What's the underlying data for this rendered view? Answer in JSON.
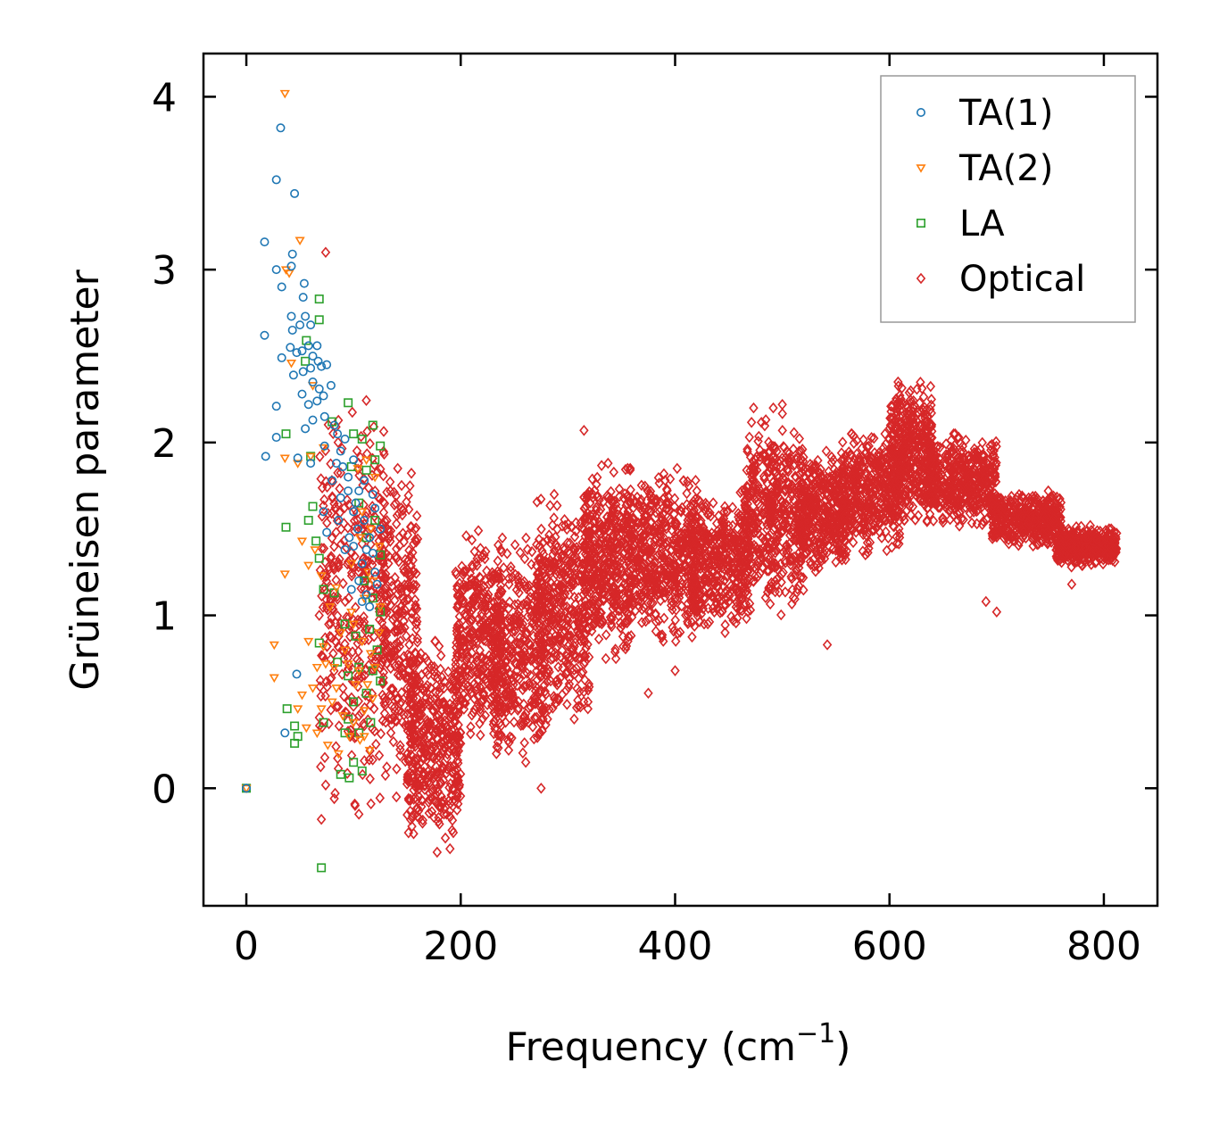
{
  "chart_data": {
    "type": "scatter",
    "title": "",
    "xlabel": "Frequency (cm",
    "xlabel_sup": "−1",
    "xlabel_close": ")",
    "ylabel": "Grüneisen parameter",
    "xlim": [
      -40,
      850
    ],
    "ylim": [
      -0.68,
      4.25
    ],
    "xticks": [
      0,
      200,
      400,
      600,
      800
    ],
    "yticks": [
      0,
      1,
      2,
      3,
      4
    ],
    "xtick_labels": [
      "0",
      "200",
      "400",
      "600",
      "800"
    ],
    "ytick_labels": [
      "0",
      "1",
      "2",
      "3",
      "4"
    ],
    "legend_position": "top-right",
    "series": [
      {
        "name": "TA(1)",
        "marker": "circle",
        "color": "#1f77b4",
        "points": [
          [
            0,
            0
          ],
          [
            32,
            3.82
          ],
          [
            28,
            3.52
          ],
          [
            45,
            3.44
          ],
          [
            17,
            3.16
          ],
          [
            43,
            3.09
          ],
          [
            42,
            3.02
          ],
          [
            28,
            3.0
          ],
          [
            33,
            2.9
          ],
          [
            54,
            2.92
          ],
          [
            53,
            2.84
          ],
          [
            17,
            2.62
          ],
          [
            42,
            2.73
          ],
          [
            50,
            2.68
          ],
          [
            55,
            2.73
          ],
          [
            43,
            2.65
          ],
          [
            60,
            2.68
          ],
          [
            33,
            2.49
          ],
          [
            41,
            2.55
          ],
          [
            47,
            2.52
          ],
          [
            52,
            2.53
          ],
          [
            58,
            2.56
          ],
          [
            62,
            2.5
          ],
          [
            66,
            2.56
          ],
          [
            44,
            2.39
          ],
          [
            53,
            2.41
          ],
          [
            60,
            2.43
          ],
          [
            67,
            2.47
          ],
          [
            70,
            2.44
          ],
          [
            75,
            2.45
          ],
          [
            62,
            2.35
          ],
          [
            68,
            2.31
          ],
          [
            79,
            2.33
          ],
          [
            52,
            2.28
          ],
          [
            58,
            2.22
          ],
          [
            66,
            2.24
          ],
          [
            72,
            2.27
          ],
          [
            28,
            2.21
          ],
          [
            62,
            2.13
          ],
          [
            73,
            2.15
          ],
          [
            55,
            2.08
          ],
          [
            82,
            2.1
          ],
          [
            28,
            2.03
          ],
          [
            48,
            1.91
          ],
          [
            73,
            1.98
          ],
          [
            84,
            1.88
          ],
          [
            18,
            1.92
          ],
          [
            60,
            1.88
          ],
          [
            80,
            1.78
          ],
          [
            90,
            1.86
          ],
          [
            95,
            1.8
          ],
          [
            72,
            1.6
          ],
          [
            88,
            1.68
          ],
          [
            105,
            1.72
          ],
          [
            100,
            1.6
          ],
          [
            110,
            1.55
          ],
          [
            115,
            1.45
          ],
          [
            120,
            1.62
          ],
          [
            75,
            1.48
          ],
          [
            100,
            1.4
          ],
          [
            108,
            1.3
          ],
          [
            118,
            1.36
          ],
          [
            125,
            1.5
          ],
          [
            105,
            1.2
          ],
          [
            112,
            1.12
          ],
          [
            120,
            1.25
          ],
          [
            98,
            1.15
          ],
          [
            115,
            1.05
          ],
          [
            47,
            0.66
          ],
          [
            36,
            0.32
          ],
          [
            88,
            1.95
          ],
          [
            92,
            2.02
          ],
          [
            100,
            1.9
          ],
          [
            85,
            2.05
          ],
          [
            95,
            1.72
          ],
          [
            102,
            1.65
          ],
          [
            110,
            1.78
          ],
          [
            118,
            1.7
          ],
          [
            104,
            1.5
          ],
          [
            96,
            1.45
          ],
          [
            112,
            1.38
          ],
          [
            122,
            1.18
          ],
          [
            108,
            1.08
          ],
          [
            92,
            1.38
          ],
          [
            86,
            1.55
          ]
        ]
      },
      {
        "name": "TA(2)",
        "marker": "triangle-down",
        "color": "#ff7f0e",
        "points": [
          [
            0,
            0
          ],
          [
            36,
            4.02
          ],
          [
            50,
            3.17
          ],
          [
            37,
            3.0
          ],
          [
            40,
            2.98
          ],
          [
            42,
            2.46
          ],
          [
            62,
            2.33
          ],
          [
            60,
            1.92
          ],
          [
            36,
            1.91
          ],
          [
            48,
            1.88
          ],
          [
            72,
            1.97
          ],
          [
            52,
            1.43
          ],
          [
            64,
            1.38
          ],
          [
            36,
            1.24
          ],
          [
            58,
            1.29
          ],
          [
            70,
            1.23
          ],
          [
            84,
            1.16
          ],
          [
            78,
            1.05
          ],
          [
            98,
            1.02
          ],
          [
            110,
            1.1
          ],
          [
            118,
            1.2
          ],
          [
            125,
            1.05
          ],
          [
            88,
            0.9
          ],
          [
            100,
            0.95
          ],
          [
            108,
            0.85
          ],
          [
            116,
            0.78
          ],
          [
            124,
            0.9
          ],
          [
            26,
            0.83
          ],
          [
            72,
            0.82
          ],
          [
            82,
            0.7
          ],
          [
            95,
            0.72
          ],
          [
            105,
            0.68
          ],
          [
            113,
            0.6
          ],
          [
            120,
            0.7
          ],
          [
            26,
            0.64
          ],
          [
            52,
            0.54
          ],
          [
            62,
            0.58
          ],
          [
            70,
            0.46
          ],
          [
            80,
            0.5
          ],
          [
            90,
            0.42
          ],
          [
            100,
            0.38
          ],
          [
            110,
            0.45
          ],
          [
            48,
            0.46
          ],
          [
            56,
            0.35
          ],
          [
            66,
            0.32
          ],
          [
            76,
            0.25
          ],
          [
            86,
            0.2
          ],
          [
            96,
            0.3
          ],
          [
            106,
            0.28
          ],
          [
            115,
            0.22
          ],
          [
            104,
            1.85
          ],
          [
            112,
            1.9
          ],
          [
            120,
            1.8
          ],
          [
            108,
            1.6
          ],
          [
            116,
            1.5
          ],
          [
            124,
            1.4
          ],
          [
            98,
            1.3
          ],
          [
            106,
            1.45
          ],
          [
            114,
            1.25
          ],
          [
            92,
            0.8
          ],
          [
            102,
            0.6
          ],
          [
            118,
            0.52
          ],
          [
            84,
            0.58
          ],
          [
            74,
            0.72
          ],
          [
            66,
            0.7
          ],
          [
            58,
            0.85
          ],
          [
            110,
            0.3
          ]
        ]
      },
      {
        "name": "LA",
        "marker": "square",
        "color": "#2ca02c",
        "points": [
          [
            0,
            0
          ],
          [
            68,
            2.83
          ],
          [
            68,
            2.71
          ],
          [
            55,
            2.47
          ],
          [
            56,
            2.59
          ],
          [
            95,
            2.23
          ],
          [
            80,
            2.12
          ],
          [
            37,
            2.05
          ],
          [
            100,
            2.05
          ],
          [
            108,
            2.02
          ],
          [
            118,
            2.1
          ],
          [
            125,
            1.98
          ],
          [
            60,
            1.92
          ],
          [
            98,
            1.86
          ],
          [
            112,
            1.84
          ],
          [
            120,
            1.9
          ],
          [
            62,
            1.63
          ],
          [
            58,
            1.55
          ],
          [
            37,
            1.51
          ],
          [
            65,
            1.43
          ],
          [
            68,
            1.33
          ],
          [
            72,
            1.15
          ],
          [
            82,
            1.13
          ],
          [
            110,
            1.2
          ],
          [
            118,
            1.1
          ],
          [
            125,
            1.02
          ],
          [
            68,
            0.84
          ],
          [
            92,
            0.95
          ],
          [
            102,
            0.88
          ],
          [
            115,
            0.92
          ],
          [
            122,
            0.8
          ],
          [
            85,
            0.73
          ],
          [
            95,
            0.65
          ],
          [
            105,
            0.7
          ],
          [
            118,
            0.68
          ],
          [
            125,
            0.62
          ],
          [
            38,
            0.46
          ],
          [
            45,
            0.36
          ],
          [
            48,
            0.3
          ],
          [
            45,
            0.26
          ],
          [
            72,
            0.38
          ],
          [
            95,
            0.4
          ],
          [
            105,
            0.32
          ],
          [
            116,
            0.38
          ],
          [
            100,
            0.15
          ],
          [
            108,
            0.1
          ],
          [
            96,
            0.06
          ],
          [
            88,
            0.08
          ],
          [
            70,
            -0.46
          ],
          [
            112,
            1.45
          ],
          [
            120,
            1.55
          ],
          [
            105,
            1.65
          ],
          [
            125,
            1.35
          ],
          [
            100,
            0.5
          ],
          [
            112,
            0.55
          ],
          [
            92,
            0.32
          ]
        ]
      },
      {
        "name": "Optical",
        "marker": "diamond",
        "color": "#d62728",
        "points": [
          [
            74,
            3.1
          ],
          [
            68,
            1.0
          ],
          [
            315,
            2.07
          ],
          [
            375,
            0.55
          ],
          [
            275,
            0.0
          ],
          [
            542,
            0.83
          ],
          [
            70,
            -0.18
          ],
          [
            105,
            -0.15
          ],
          [
            82,
            -0.06
          ],
          [
            140,
            -0.05
          ],
          [
            178,
            -0.37
          ],
          [
            190,
            -0.35
          ],
          [
            608,
            2.35
          ],
          [
            500,
            2.22
          ],
          [
            770,
            1.18
          ],
          [
            700,
            1.02
          ],
          [
            690,
            1.08
          ],
          [
            400,
            0.68
          ]
        ],
        "clusters": [
          {
            "x": [
              68,
              130
            ],
            "y": [
              -0.1,
              2.28
            ],
            "n": 360
          },
          {
            "x": [
              125,
              160
            ],
            "y": [
              0.0,
              1.85
            ],
            "n": 300
          },
          {
            "x": [
              150,
              200
            ],
            "y": [
              -0.35,
              0.85
            ],
            "n": 420
          },
          {
            "x": [
              195,
              240
            ],
            "y": [
              0.2,
              1.5
            ],
            "n": 380
          },
          {
            "x": [
              230,
              280
            ],
            "y": [
              0.15,
              1.45
            ],
            "n": 360
          },
          {
            "x": [
              270,
              320
            ],
            "y": [
              0.35,
              1.7
            ],
            "n": 420
          },
          {
            "x": [
              315,
              360
            ],
            "y": [
              0.75,
              1.88
            ],
            "n": 420
          },
          {
            "x": [
              355,
              420
            ],
            "y": [
              0.85,
              1.85
            ],
            "n": 500
          },
          {
            "x": [
              415,
              470
            ],
            "y": [
              0.9,
              1.72
            ],
            "n": 440
          },
          {
            "x": [
              465,
              520
            ],
            "y": [
              1.0,
              2.2
            ],
            "n": 440
          },
          {
            "x": [
              515,
              560
            ],
            "y": [
              1.25,
              1.95
            ],
            "n": 380
          },
          {
            "x": [
              555,
              610
            ],
            "y": [
              1.35,
              2.05
            ],
            "n": 440
          },
          {
            "x": [
              600,
              640
            ],
            "y": [
              1.55,
              2.35
            ],
            "n": 420
          },
          {
            "x": [
              635,
              700
            ],
            "y": [
              1.5,
              2.05
            ],
            "n": 460
          },
          {
            "x": [
              695,
              760
            ],
            "y": [
              1.4,
              1.72
            ],
            "n": 420
          },
          {
            "x": [
              755,
              812
            ],
            "y": [
              1.28,
              1.52
            ],
            "n": 380
          }
        ]
      }
    ]
  }
}
